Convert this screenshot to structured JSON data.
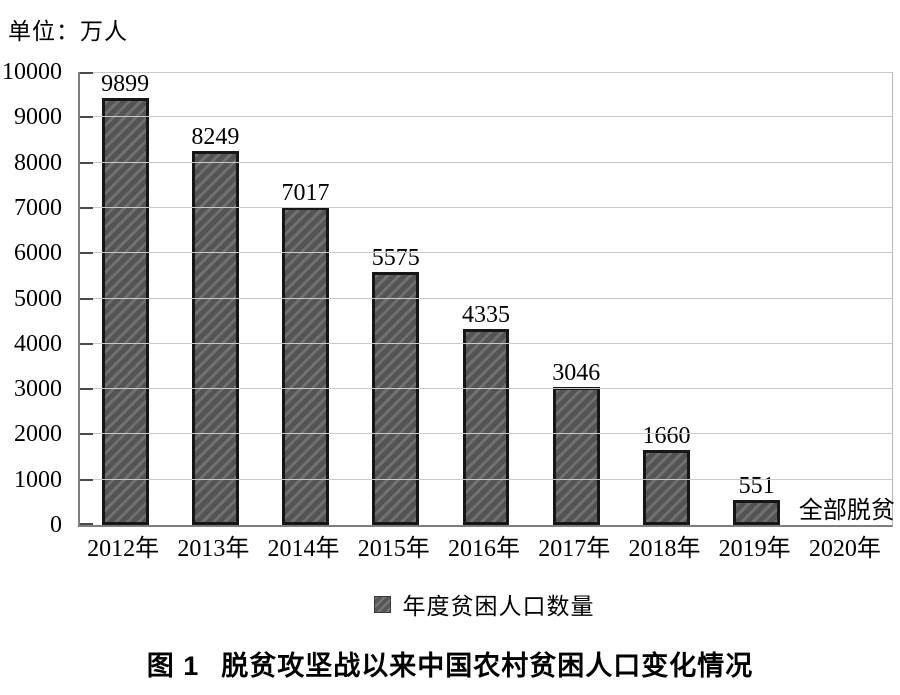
{
  "chart_data": {
    "type": "bar",
    "unit_label": "单位：万人",
    "categories": [
      "2012年",
      "2013年",
      "2014年",
      "2015年",
      "2016年",
      "2017年",
      "2018年",
      "2019年",
      "2020年"
    ],
    "series": [
      {
        "name": "年度贫困人口数量",
        "values": [
          9899,
          8249,
          7017,
          5575,
          4335,
          3046,
          1660,
          551,
          null
        ]
      }
    ],
    "bar_value_labels": [
      "9899",
      "8249",
      "7017",
      "5575",
      "4335",
      "3046",
      "1660",
      "551",
      ""
    ],
    "annotations": [
      {
        "category": "2020年",
        "category_index": 8,
        "text": "全部脱贫"
      }
    ],
    "legend_entries": [
      "年度贫困人口数量"
    ],
    "legend_position": "bottom",
    "ylim": [
      0,
      10000
    ],
    "yticks": [
      0,
      1000,
      2000,
      3000,
      4000,
      5000,
      6000,
      7000,
      8000,
      9000,
      10000
    ],
    "grid": true,
    "caption": {
      "prefix": "图 1",
      "text": "脱贫攻坚战以来中国农村贫困人口变化情况"
    },
    "colors": {
      "bar_fill": "#545454",
      "bar_stripe": "#707070",
      "bar_border": "#161616",
      "grid_line": "#c9c9c9",
      "axis_line": "#7e7e7e",
      "tick_mark": "#4a4a4a",
      "text": "#000000"
    }
  }
}
